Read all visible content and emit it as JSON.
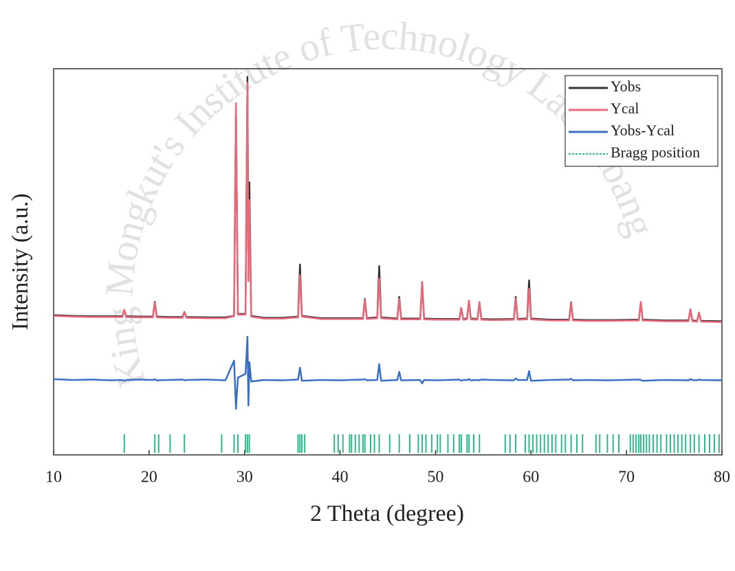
{
  "chart_data": {
    "type": "line",
    "xlabel": "2 Theta (degree)",
    "ylabel": "Intensity (a.u.)",
    "watermark": "King Mongkut's Institute of Technology Ladkrabang",
    "xlim": [
      10,
      80
    ],
    "xticks": [
      10,
      20,
      30,
      40,
      50,
      60,
      70,
      80
    ],
    "ylim": [
      0,
      100
    ],
    "legend": "upper right",
    "x": [
      10,
      12,
      14,
      16,
      17.2,
      17.4,
      17.6,
      19,
      20.4,
      20.6,
      20.8,
      22,
      23.5,
      23.7,
      23.9,
      26,
      28,
      28.9,
      29.1,
      29.3,
      30.1,
      30.3,
      30.4,
      30.5,
      30.7,
      32,
      34,
      35.6,
      35.8,
      36.0,
      38,
      40,
      42.4,
      42.6,
      42.8,
      43.9,
      44.1,
      44.3,
      46.0,
      46.2,
      46.4,
      48.4,
      48.6,
      48.8,
      50,
      52.5,
      52.7,
      52.9,
      53.3,
      53.5,
      53.7,
      54.4,
      54.6,
      54.8,
      56,
      58.2,
      58.4,
      58.6,
      59.6,
      59.8,
      60.0,
      62,
      64.0,
      64.2,
      64.4,
      66,
      68,
      71.3,
      71.5,
      71.7,
      74,
      76.5,
      76.7,
      76.9,
      77.4,
      77.6,
      77.8,
      80
    ],
    "series": [
      {
        "name": "Yobs",
        "color": "#333333",
        "values": [
          36.2,
          36.0,
          35.9,
          35.9,
          35.9,
          37.5,
          35.9,
          35.8,
          35.8,
          39.6,
          35.8,
          35.7,
          35.7,
          37.0,
          35.7,
          35.6,
          35.6,
          36.0,
          90.0,
          36.5,
          36.5,
          97.9,
          50.0,
          70.6,
          36.0,
          35.5,
          35.5,
          35.8,
          49.3,
          36.0,
          35.4,
          35.4,
          35.4,
          40.4,
          35.4,
          35.6,
          48.9,
          35.6,
          35.3,
          40.9,
          35.3,
          35.3,
          44.8,
          35.3,
          35.2,
          35.2,
          38.0,
          35.2,
          35.3,
          39.9,
          35.3,
          35.2,
          39.5,
          35.2,
          35.1,
          35.2,
          40.9,
          35.2,
          35.3,
          45.2,
          35.3,
          35.0,
          35.0,
          39.5,
          35.0,
          34.9,
          34.9,
          35.0,
          39.5,
          35.0,
          34.8,
          34.8,
          37.7,
          34.8,
          34.7,
          36.8,
          34.7,
          34.6
        ]
      },
      {
        "name": "Ycal",
        "color": "#e8697a",
        "values": [
          36.0,
          35.8,
          35.7,
          35.7,
          35.7,
          37.6,
          35.7,
          35.6,
          35.6,
          39.4,
          35.6,
          35.5,
          35.5,
          36.9,
          35.5,
          35.4,
          35.4,
          35.9,
          91.1,
          36.3,
          36.3,
          96.4,
          45.0,
          66.0,
          35.8,
          35.3,
          35.3,
          35.6,
          46.6,
          35.8,
          35.2,
          35.2,
          35.2,
          40.2,
          35.2,
          35.4,
          45.7,
          35.4,
          35.1,
          40.4,
          35.1,
          35.1,
          44.8,
          35.1,
          35.0,
          35.0,
          38.1,
          35.0,
          35.1,
          39.8,
          35.1,
          35.0,
          39.6,
          35.0,
          34.9,
          35.0,
          40.5,
          35.0,
          35.1,
          43.0,
          35.1,
          34.8,
          34.8,
          39.3,
          34.8,
          34.7,
          34.7,
          34.8,
          39.6,
          34.8,
          34.6,
          34.6,
          37.6,
          34.6,
          34.5,
          36.9,
          34.5,
          34.4
        ]
      },
      {
        "name": "Yobs-Ycal",
        "color": "#3a6fc4",
        "values": [
          19.6,
          19.4,
          19.5,
          19.3,
          19.4,
          19.2,
          19.4,
          19.5,
          19.4,
          19.6,
          19.3,
          19.4,
          19.5,
          19.3,
          19.4,
          19.5,
          19.3,
          24.4,
          11.9,
          20.0,
          21.0,
          30.6,
          12.8,
          24.0,
          19.0,
          19.4,
          19.3,
          19.5,
          22.6,
          19.2,
          19.4,
          19.3,
          19.5,
          19.6,
          19.3,
          19.4,
          23.5,
          19.2,
          19.4,
          21.5,
          19.3,
          19.4,
          18.5,
          19.4,
          19.3,
          19.5,
          19.2,
          19.4,
          19.4,
          19.6,
          19.3,
          19.4,
          19.3,
          19.5,
          19.4,
          19.3,
          19.8,
          19.4,
          19.4,
          21.7,
          19.2,
          19.4,
          19.5,
          19.7,
          19.3,
          19.4,
          19.3,
          19.5,
          19.4,
          19.2,
          19.4,
          19.3,
          19.6,
          19.4,
          19.3,
          19.5,
          19.4,
          19.3
        ]
      }
    ],
    "bragg": {
      "name": "Bragg position",
      "color": "#2bb88a",
      "x": [
        17.4,
        20.6,
        21.0,
        22.2,
        23.7,
        27.6,
        28.9,
        29.3,
        30.1,
        30.3,
        30.5,
        35.6,
        35.8,
        36.0,
        36.3,
        39.4,
        39.8,
        40.3,
        41.0,
        41.2,
        41.6,
        42.0,
        42.4,
        42.6,
        43.2,
        43.6,
        44.1,
        45.2,
        46.2,
        47.3,
        48.2,
        48.6,
        49.0,
        49.6,
        50.2,
        50.5,
        51.3,
        51.9,
        52.5,
        52.7,
        53.3,
        53.5,
        54.0,
        54.6,
        57.3,
        57.8,
        58.4,
        59.4,
        59.8,
        60.2,
        60.6,
        61.0,
        61.4,
        61.8,
        62.2,
        62.6,
        63.2,
        63.6,
        64.2,
        64.8,
        65.4,
        66.8,
        67.2,
        68.0,
        68.6,
        69.2,
        70.4,
        70.7,
        71.0,
        71.3,
        71.5,
        71.8,
        72.1,
        72.4,
        72.8,
        73.2,
        73.6,
        74.2,
        74.6,
        75.0,
        75.4,
        75.8,
        76.2,
        76.7,
        77.1,
        77.6,
        78.2,
        78.7,
        79.2,
        79.7
      ]
    }
  }
}
